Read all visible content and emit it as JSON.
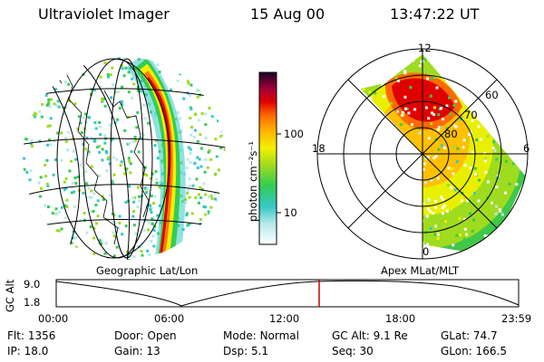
{
  "header": {
    "instrument": "Ultraviolet Imager",
    "date": "15 Aug 00",
    "time": "13:47:22 UT"
  },
  "left_panel": {
    "caption": "Geographic Lat/Lon"
  },
  "right_panel": {
    "caption": "Apex MLat/MLT",
    "mlt_labels": [
      "12",
      "18",
      "6",
      "0"
    ],
    "mlat_labels": [
      "60",
      "70",
      "80"
    ]
  },
  "colorbar": {
    "unit": "photon cm⁻²s⁻¹",
    "ticks": [
      "100",
      "10"
    ],
    "scale": "log"
  },
  "orbit_plot": {
    "ylabel": "GC Alt",
    "yticks": [
      "9.0",
      "1.8"
    ],
    "xticks": [
      "00:00",
      "06:00",
      "12:00",
      "18:00",
      "23:59"
    ],
    "current_time_marker": "13:47",
    "marker_color": "#cc0000"
  },
  "status": {
    "row1": [
      {
        "label": "Flt:",
        "value": "1356"
      },
      {
        "label": "Door:",
        "value": "Open"
      },
      {
        "label": "Mode:",
        "value": "Normal"
      },
      {
        "label": "GC Alt:",
        "value": "9.1 Re"
      },
      {
        "label": "GLat:",
        "value": "74.7"
      }
    ],
    "row2": [
      {
        "label": "IP:",
        "value": "18.0"
      },
      {
        "label": "Gain:",
        "value": "13"
      },
      {
        "label": "Dsp:",
        "value": "5.1"
      },
      {
        "label": "Seq:",
        "value": "30"
      },
      {
        "label": "GLon:",
        "value": "166.5"
      }
    ]
  }
}
